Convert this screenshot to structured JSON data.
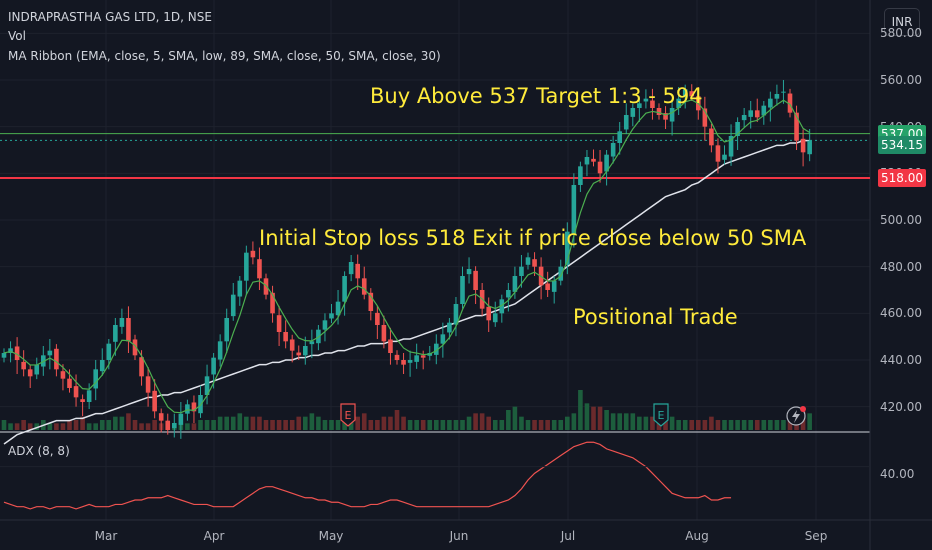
{
  "header": {
    "symbol_line": "INDRAPRASTHA GAS LTD, 1D, NSE",
    "indicator_vol": "Vol",
    "indicator_ma": "MA Ribbon (EMA, close, 5, SMA, low, 89, SMA, close, 50, SMA, close, 30)",
    "currency": "INR"
  },
  "annotations": {
    "buy": "Buy Above 537 Target 1:3 - 594",
    "stop": "Initial Stop loss 518 Exit if price close below 50 SMA",
    "trade": "Positional Trade"
  },
  "adx": {
    "label": "ADX (8, 8)",
    "axis_tick": "40.00",
    "values": [
      24,
      23,
      22,
      22,
      21,
      22,
      22,
      21,
      22,
      22,
      22,
      21,
      22,
      23,
      22,
      22,
      22,
      23,
      23,
      24,
      25,
      25,
      26,
      26,
      26,
      27,
      26,
      25,
      24,
      23,
      23,
      23,
      22,
      22,
      22,
      22,
      24,
      26,
      28,
      30,
      31,
      31,
      30,
      29,
      28,
      27,
      26,
      26,
      25,
      25,
      24,
      24,
      23,
      22,
      22,
      22,
      23,
      23,
      24,
      25,
      25,
      24,
      23,
      22,
      22,
      22,
      22,
      22,
      22,
      22,
      22,
      22,
      22,
      22,
      22,
      23,
      24,
      25,
      27,
      30,
      34,
      37,
      39,
      41,
      43,
      45,
      47,
      49,
      50,
      51,
      51,
      50,
      48,
      47,
      46,
      45,
      44,
      42,
      40,
      37,
      34,
      31,
      28,
      27,
      26,
      26,
      26,
      27,
      25,
      25,
      26,
      26
    ]
  },
  "chart_data": {
    "type": "candlestick",
    "title": "INDRAPRASTHA GAS LTD, 1D, NSE",
    "y_ticks": [
      "580.00",
      "560.00",
      "540.00",
      "520.00",
      "500.00",
      "480.00",
      "460.00",
      "440.00",
      "420.00"
    ],
    "ylim": [
      410,
      590
    ],
    "x_ticks": [
      "Mar",
      "Apr",
      "May",
      "Jun",
      "Jul",
      "Aug",
      "Sep"
    ],
    "price_tags": {
      "entry": "537.00",
      "last": "534.15",
      "stop": "518.00"
    },
    "levels": {
      "entry": 537,
      "last": 534.15,
      "stop": 518
    },
    "close": [
      443,
      445,
      440,
      436,
      433,
      438,
      442,
      444,
      436,
      432,
      428,
      424,
      422,
      427,
      436,
      440,
      447,
      455,
      458,
      448,
      442,
      433,
      426,
      418,
      414,
      410,
      413,
      417,
      421,
      418,
      425,
      433,
      441,
      448,
      458,
      468,
      474,
      486,
      484,
      475,
      468,
      460,
      452,
      448,
      444,
      442,
      446,
      448,
      453,
      457,
      460,
      465,
      476,
      482,
      475,
      468,
      461,
      455,
      448,
      443,
      440,
      438,
      440,
      442,
      441,
      443,
      447,
      451,
      456,
      464,
      476,
      479,
      470,
      462,
      457,
      460,
      466,
      470,
      476,
      480,
      484,
      480,
      472,
      470,
      474,
      480,
      495,
      515,
      523,
      527,
      525,
      520,
      528,
      533,
      538,
      545,
      548,
      550,
      552,
      548,
      545,
      543,
      548,
      552,
      556,
      553,
      547,
      540,
      532,
      525,
      528,
      536,
      542,
      545,
      547,
      544,
      549,
      552,
      554,
      555,
      546,
      534,
      529,
      534
    ],
    "sma50": [
      404,
      406,
      408,
      409,
      410,
      411,
      412,
      413,
      414,
      414,
      414,
      415,
      415,
      416,
      417,
      417,
      418,
      419,
      420,
      421,
      422,
      423,
      424,
      424,
      425,
      425,
      426,
      426,
      427,
      428,
      429,
      430,
      431,
      432,
      433,
      434,
      435,
      436,
      437,
      438,
      438,
      439,
      439,
      440,
      440,
      441,
      441,
      442,
      442,
      443,
      443,
      444,
      444,
      445,
      446,
      446,
      447,
      447,
      447,
      448,
      448,
      449,
      449,
      450,
      451,
      452,
      453,
      454,
      455,
      456,
      457,
      458,
      459,
      459,
      460,
      461,
      462,
      463,
      464,
      466,
      468,
      470,
      472,
      474,
      476,
      478,
      480,
      482,
      484,
      486,
      488,
      490,
      492,
      494,
      496,
      498,
      500,
      502,
      504,
      506,
      508,
      510,
      511,
      512,
      513,
      515,
      516,
      518,
      520,
      522,
      524,
      525,
      526,
      527,
      528,
      529,
      530,
      531,
      532,
      532,
      533,
      533,
      534,
      534
    ],
    "volume": [
      3,
      2,
      2,
      3,
      2,
      2,
      3,
      2,
      2,
      2,
      3,
      3,
      4,
      2,
      2,
      3,
      3,
      4,
      4,
      5,
      3,
      2,
      2,
      3,
      2,
      2,
      2,
      2,
      2,
      2,
      3,
      3,
      3,
      4,
      4,
      4,
      5,
      4,
      4,
      4,
      3,
      3,
      3,
      3,
      3,
      4,
      4,
      5,
      4,
      3,
      3,
      3,
      3,
      3,
      4,
      5,
      3,
      3,
      4,
      4,
      6,
      4,
      3,
      3,
      3,
      3,
      3,
      3,
      3,
      3,
      3,
      4,
      5,
      5,
      4,
      3,
      3,
      6,
      7,
      4,
      3,
      3,
      3,
      3,
      3,
      3,
      4,
      5,
      12,
      8,
      7,
      7,
      6,
      5,
      5,
      5,
      5,
      4,
      4,
      4,
      4,
      4,
      4,
      3,
      3,
      3,
      3,
      3,
      4,
      3,
      3,
      3,
      3,
      3,
      3,
      3,
      3,
      3,
      3,
      3,
      3,
      4,
      6,
      5
    ]
  }
}
